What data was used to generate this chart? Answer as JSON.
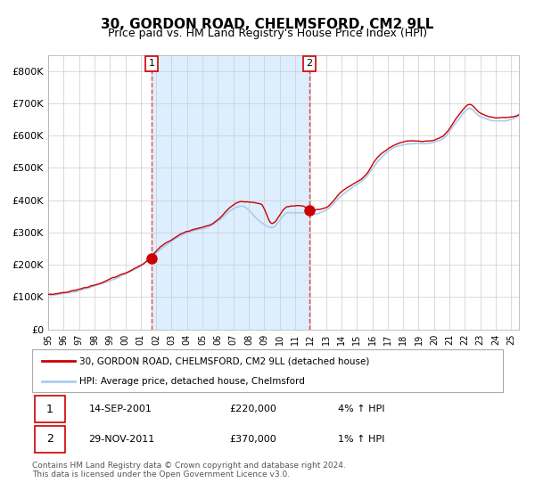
{
  "title": "30, GORDON ROAD, CHELMSFORD, CM2 9LL",
  "subtitle": "Price paid vs. HM Land Registry's House Price Index (HPI)",
  "title_fontsize": 11,
  "subtitle_fontsize": 9,
  "background_color": "#ffffff",
  "plot_bg_color": "#ffffff",
  "shade_color": "#ddeeff",
  "grid_color": "#cccccc",
  "hpi_line_color": "#aaccee",
  "price_line_color": "#cc0000",
  "marker_color": "#cc0000",
  "dashed_line_color": "#ee4444",
  "ylabel_color": "#333333",
  "ylim": [
    0,
    850000
  ],
  "yticks": [
    0,
    100000,
    200000,
    300000,
    400000,
    500000,
    600000,
    700000,
    800000
  ],
  "ytick_labels": [
    "£0",
    "£100K",
    "£200K",
    "£300K",
    "£400K",
    "£500K",
    "£600K",
    "£700K",
    "£800K"
  ],
  "xstart": 1995.0,
  "xend": 2025.5,
  "purchase1_x": 2001.71,
  "purchase1_y": 220000,
  "purchase1_label": "1",
  "purchase2_x": 2011.91,
  "purchase2_y": 370000,
  "purchase2_label": "2",
  "shade_x1": 2001.71,
  "shade_x2": 2011.91,
  "legend_line1": "30, GORDON ROAD, CHELMSFORD, CM2 9LL (detached house)",
  "legend_line2": "HPI: Average price, detached house, Chelmsford",
  "table_row1_num": "1",
  "table_row1_date": "14-SEP-2001",
  "table_row1_price": "£220,000",
  "table_row1_hpi": "4% ↑ HPI",
  "table_row2_num": "2",
  "table_row2_date": "29-NOV-2011",
  "table_row2_price": "£370,000",
  "table_row2_hpi": "1% ↑ HPI",
  "footnote": "Contains HM Land Registry data © Crown copyright and database right 2024.\nThis data is licensed under the Open Government Licence v3.0.",
  "xtick_years": [
    1995,
    1996,
    1997,
    1998,
    1999,
    2000,
    2001,
    2002,
    2003,
    2004,
    2005,
    2006,
    2007,
    2008,
    2009,
    2010,
    2011,
    2012,
    2013,
    2014,
    2015,
    2016,
    2017,
    2018,
    2019,
    2020,
    2021,
    2022,
    2023,
    2024,
    2025
  ]
}
